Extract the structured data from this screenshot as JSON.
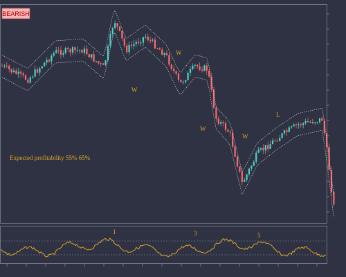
{
  "badge": "BEARISH",
  "note": "Expected profitability 55% 65%",
  "annotations": [
    "W",
    "W",
    "W",
    "W",
    "L"
  ],
  "indicator_marks": [
    "1",
    "3",
    "5"
  ]
}
